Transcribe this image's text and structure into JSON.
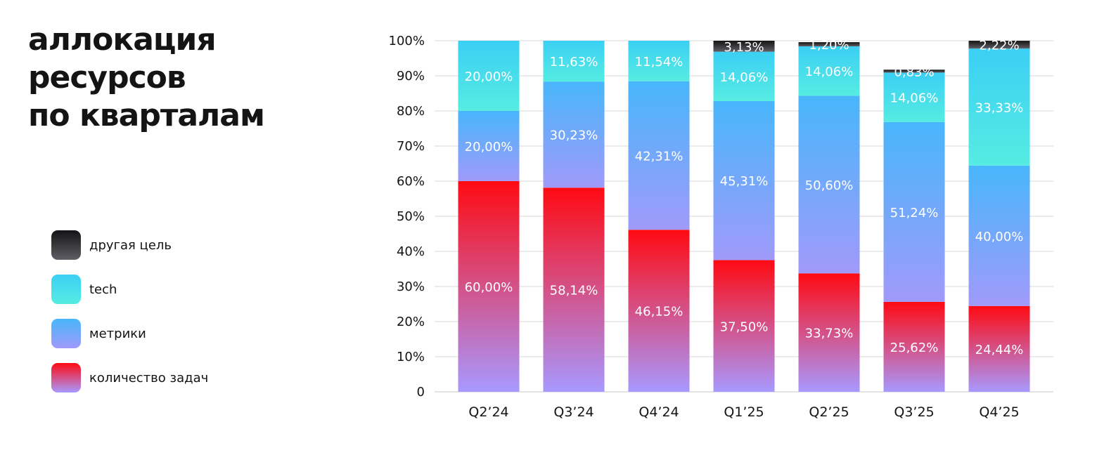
{
  "title": {
    "lines": [
      "аллокация",
      "ресурсов",
      "по кварталам"
    ]
  },
  "legend": [
    {
      "key": "other",
      "label": "другая цель"
    },
    {
      "key": "tech",
      "label": "tech"
    },
    {
      "key": "metrics",
      "label": "метрики"
    },
    {
      "key": "tasks",
      "label": "количество задач"
    }
  ],
  "colors": {
    "other": [
      "#5e5e64",
      "#141416"
    ],
    "tech": [
      "#56ece2",
      "#3bcff4"
    ],
    "metrics": [
      "#a09afa",
      "#48b6fb"
    ],
    "tasks": [
      "#a899ff",
      "#ff0a12"
    ],
    "grid": "#d9d9d9",
    "axis": "#c8c8c8"
  },
  "chart_data": {
    "type": "bar",
    "stacked": true,
    "categories": [
      "Q2’24",
      "Q3’24",
      "Q4’24",
      "Q1’25",
      "Q2’25",
      "Q3’25",
      "Q4’25"
    ],
    "yticks": [
      "0",
      "10%",
      "20%",
      "30%",
      "40%",
      "50%",
      "60%",
      "70%",
      "80%",
      "90%",
      "100%"
    ],
    "ylim": [
      0,
      100
    ],
    "grid": true,
    "legend_position": "left",
    "series": [
      {
        "key": "tasks",
        "name": "количество задач",
        "values": [
          60.0,
          58.14,
          46.15,
          37.5,
          33.73,
          25.62,
          24.44
        ],
        "labels": [
          "60,00%",
          "58,14%",
          "46,15%",
          "37,50%",
          "33,73%",
          "25,62%",
          "24,44%"
        ]
      },
      {
        "key": "metrics",
        "name": "метрики",
        "values": [
          20.0,
          30.23,
          42.31,
          45.31,
          50.6,
          51.24,
          40.0
        ],
        "labels": [
          "20,00%",
          "30,23%",
          "42,31%",
          "45,31%",
          "50,60%",
          "51,24%",
          "40,00%"
        ]
      },
      {
        "key": "tech",
        "name": "tech",
        "values": [
          20.0,
          11.63,
          11.54,
          14.06,
          14.06,
          14.06,
          33.33
        ],
        "labels": [
          "20,00%",
          "11,63%",
          "11,54%",
          "14,06%",
          "14,06%",
          "14,06%",
          "33,33%"
        ]
      },
      {
        "key": "other",
        "name": "другая цель",
        "values": [
          0,
          0,
          0,
          3.13,
          1.2,
          0.83,
          2.22
        ],
        "labels": [
          "",
          "",
          "",
          "3,13%",
          "1,20%",
          "0,83%",
          "2,22%"
        ]
      }
    ]
  }
}
